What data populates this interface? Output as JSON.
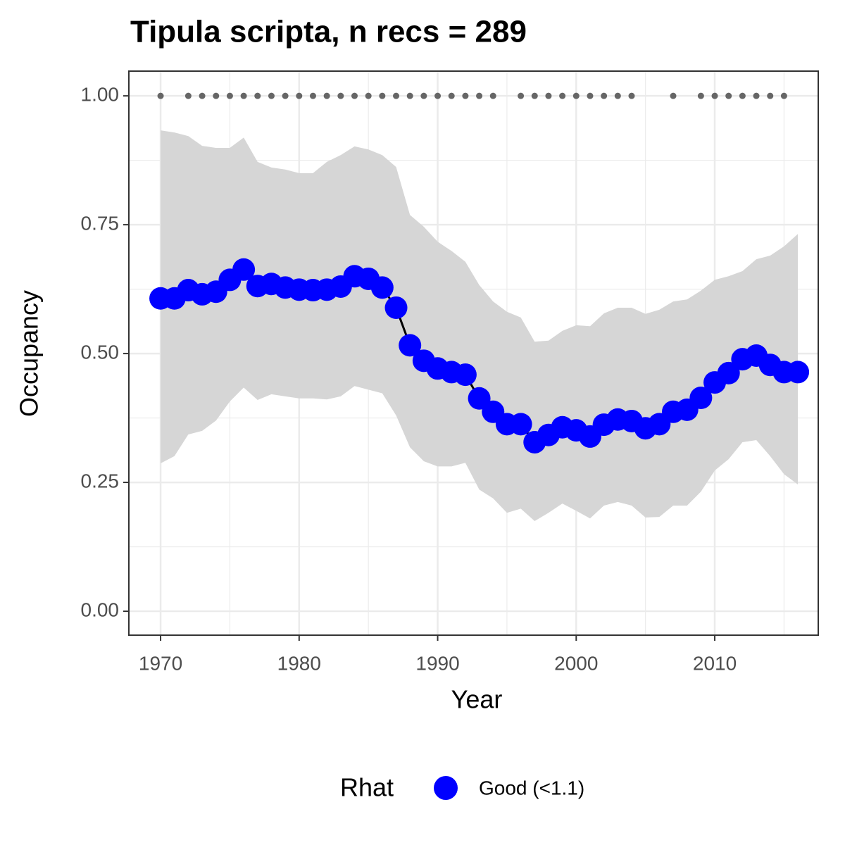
{
  "chart_data": {
    "type": "occupancy",
    "title": "Tipula scripta, n recs = 289",
    "x_label": "Year",
    "y_label": "Occupancy",
    "legend_title": "Rhat",
    "x": [
      1970,
      1971,
      1972,
      1973,
      1974,
      1975,
      1976,
      1977,
      1978,
      1979,
      1980,
      1981,
      1982,
      1983,
      1984,
      1985,
      1986,
      1987,
      1988,
      1989,
      1990,
      1991,
      1992,
      1993,
      1994,
      1995,
      1996,
      1997,
      1998,
      1999,
      2000,
      2001,
      2002,
      2003,
      2004,
      2005,
      2006,
      2007,
      2008,
      2009,
      2010,
      2011,
      2012,
      2013,
      2014,
      2015,
      2016
    ],
    "series": [
      {
        "name": "Good (<1.1)",
        "color": "#0000ff",
        "values": [
          0.607,
          0.607,
          0.623,
          0.615,
          0.62,
          0.643,
          0.663,
          0.631,
          0.635,
          0.628,
          0.624,
          0.623,
          0.624,
          0.63,
          0.65,
          0.645,
          0.628,
          0.589,
          0.516,
          0.486,
          0.471,
          0.464,
          0.459,
          0.413,
          0.387,
          0.363,
          0.363,
          0.328,
          0.342,
          0.357,
          0.351,
          0.339,
          0.362,
          0.372,
          0.369,
          0.355,
          0.363,
          0.387,
          0.391,
          0.414,
          0.444,
          0.462,
          0.489,
          0.496,
          0.478,
          0.464,
          0.464
        ]
      }
    ],
    "band": {
      "color": "#d6d6d6",
      "upper": [
        0.933,
        0.929,
        0.922,
        0.903,
        0.899,
        0.899,
        0.919,
        0.872,
        0.861,
        0.857,
        0.85,
        0.85,
        0.872,
        0.885,
        0.902,
        0.896,
        0.885,
        0.862,
        0.769,
        0.746,
        0.717,
        0.699,
        0.678,
        0.633,
        0.601,
        0.581,
        0.57,
        0.523,
        0.525,
        0.544,
        0.555,
        0.553,
        0.578,
        0.589,
        0.589,
        0.577,
        0.585,
        0.601,
        0.605,
        0.622,
        0.643,
        0.65,
        0.66,
        0.683,
        0.69,
        0.708,
        0.732
      ],
      "lower": [
        0.287,
        0.301,
        0.343,
        0.35,
        0.37,
        0.407,
        0.434,
        0.41,
        0.421,
        0.417,
        0.413,
        0.413,
        0.411,
        0.417,
        0.437,
        0.43,
        0.423,
        0.38,
        0.318,
        0.291,
        0.281,
        0.281,
        0.288,
        0.236,
        0.219,
        0.191,
        0.199,
        0.175,
        0.191,
        0.209,
        0.195,
        0.18,
        0.205,
        0.212,
        0.205,
        0.182,
        0.183,
        0.205,
        0.205,
        0.232,
        0.273,
        0.295,
        0.328,
        0.332,
        0.301,
        0.266,
        0.246
      ]
    },
    "records": {
      "color": "#666666",
      "x": [
        1970,
        1972,
        1973,
        1974,
        1975,
        1976,
        1977,
        1978,
        1979,
        1980,
        1981,
        1982,
        1983,
        1984,
        1985,
        1986,
        1987,
        1988,
        1989,
        1990,
        1991,
        1992,
        1993,
        1994,
        1996,
        1997,
        1998,
        1999,
        2000,
        2001,
        2002,
        2003,
        2004,
        2007,
        2009,
        2010,
        2011,
        2012,
        2013,
        2014,
        2015
      ],
      "values": [
        1,
        1,
        1,
        1,
        1,
        1,
        1,
        1,
        1,
        1,
        1,
        1,
        1,
        1,
        1,
        1,
        1,
        1,
        1,
        1,
        1,
        1,
        1,
        1,
        1,
        1,
        1,
        1,
        1,
        1,
        1,
        1,
        1,
        1,
        1,
        1,
        1,
        1,
        1,
        1,
        1
      ]
    },
    "xlim": [
      1967.71,
      2017.47
    ],
    "ylim": [
      -0.0464,
      1.048
    ],
    "xticks": [
      1970,
      1980,
      1990,
      2000,
      2010
    ],
    "yticks": [
      {
        "value": 0,
        "label": "0.00"
      },
      {
        "value": 0.25,
        "label": "0.25"
      },
      {
        "value": 0.5,
        "label": "0.50"
      },
      {
        "value": 0.75,
        "label": "0.75"
      },
      {
        "value": 1,
        "label": "1.00"
      }
    ],
    "minor_xticks": [
      1975,
      1985,
      1995,
      2005,
      2015
    ],
    "minor_yticks": [
      0.125,
      0.375,
      0.625,
      0.875
    ],
    "grid": true
  }
}
